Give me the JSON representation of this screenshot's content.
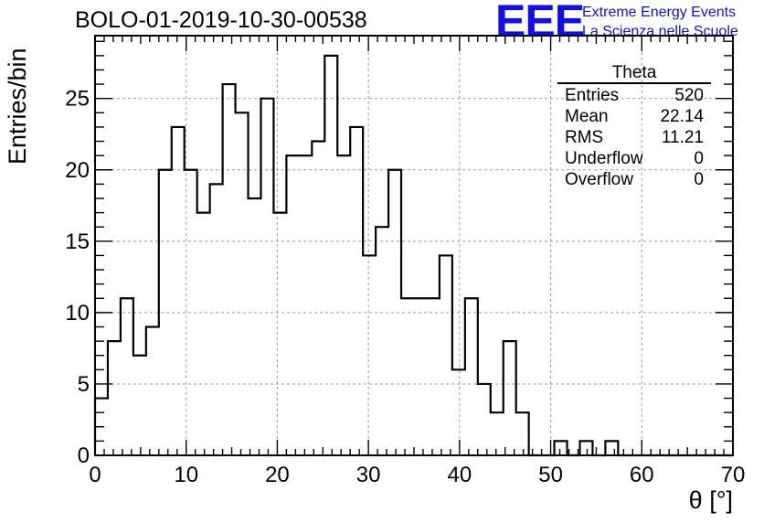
{
  "chart_data": {
    "type": "histogram",
    "title": "BOLO-01-2019-10-30-00538",
    "xlabel": "θ [°]",
    "ylabel": "Entries/bin",
    "xlim": [
      0,
      70
    ],
    "ylim": [
      0,
      29.4
    ],
    "x_ticks": [
      0,
      10,
      20,
      30,
      40,
      50,
      60,
      70
    ],
    "y_ticks": [
      0,
      5,
      10,
      15,
      20,
      25
    ],
    "grid": true,
    "bin_width": 1.4,
    "bin_counts": [
      4,
      8,
      11,
      7,
      9,
      20,
      23,
      20,
      17,
      19,
      26,
      24,
      18,
      25,
      17,
      21,
      21,
      22,
      28,
      21,
      23,
      14,
      16,
      20,
      11,
      11,
      11,
      14,
      6,
      11,
      5,
      3,
      8,
      3,
      0,
      0,
      1,
      0,
      1,
      0,
      1,
      0,
      0,
      0,
      0,
      0,
      0,
      0,
      0,
      0
    ],
    "stats_box": {
      "title": "Theta",
      "rows": [
        {
          "label": "Entries",
          "value": "520"
        },
        {
          "label": "Mean",
          "value": "22.14"
        },
        {
          "label": "RMS",
          "value": "11.21"
        },
        {
          "label": "Underflow",
          "value": "0"
        },
        {
          "label": "Overflow",
          "value": "0"
        }
      ]
    }
  },
  "logo": {
    "mark": "EEE",
    "line1": "Extreme Energy Events",
    "line2": "La Scienza nelle Scuole",
    "color": "#1010e6"
  }
}
